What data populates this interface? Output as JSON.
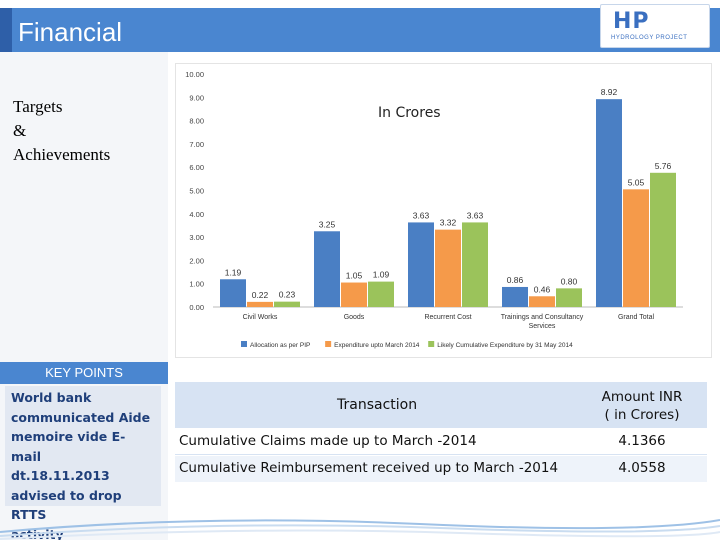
{
  "header": {
    "title": "Financial",
    "logo_mark": "HP",
    "logo_sub": "HYDROLOGY PROJECT"
  },
  "side": {
    "targets_line1": "Targets",
    "targets_line2": "&",
    "targets_line3": "Achievements"
  },
  "key_points": {
    "header": "KEY POINTS",
    "lines": [
      "World bank",
      "communicated Aide",
      "memoire vide E-mail",
      "dt.18.11.2013",
      "advised to drop RTTS",
      "activity"
    ]
  },
  "unit_label": "In Crores",
  "chart_data": {
    "type": "bar",
    "categories": [
      "Civil Works",
      "Goods",
      "Recurrent Cost",
      "Trainings and Consultancy Services",
      "Grand Total"
    ],
    "category_lines": [
      [
        "Civil Works"
      ],
      [
        "Goods"
      ],
      [
        "Recurrent Cost"
      ],
      [
        "Trainings and Consultancy",
        "Services"
      ],
      [
        "Grand Total"
      ]
    ],
    "series": [
      {
        "name": "Allocation as per PIP",
        "values": [
          1.19,
          3.25,
          3.63,
          0.86,
          8.92
        ],
        "labels": [
          "1.19",
          "3.25",
          "3.63",
          "0.86",
          "8.92"
        ],
        "color": "#4a7fc4"
      },
      {
        "name": "Expenditure upto March 2014",
        "values": [
          0.22,
          1.05,
          3.32,
          0.46,
          5.05
        ],
        "labels": [
          "0.22",
          "1.05",
          "3.32",
          "0.46",
          "5.05"
        ],
        "color": "#f59a4a"
      },
      {
        "name": "Likely Cumulative Expenditure by 31 May 2014",
        "values": [
          0.23,
          1.09,
          3.63,
          0.8,
          5.76
        ],
        "labels": [
          "0.23",
          "1.09",
          "3.63",
          "0.80",
          "5.76"
        ],
        "color": "#9bc35b"
      }
    ],
    "yticks": [
      "0.00",
      "1.00",
      "2.00",
      "3.00",
      "4.00",
      "5.00",
      "6.00",
      "7.00",
      "8.00",
      "9.00",
      "10.00"
    ],
    "ylim": [
      0,
      10
    ],
    "grid": false,
    "legend": "bottom"
  },
  "table": {
    "col1_header": "Transaction",
    "col2_header_line1": "Amount INR",
    "col2_header_line2": "( in Crores)",
    "rows": [
      {
        "label": "Cumulative Claims made up to March -2014",
        "amount": "4.1366"
      },
      {
        "label": "Cumulative Reimbursement received up to March -2014",
        "amount": "4.0558"
      }
    ]
  }
}
